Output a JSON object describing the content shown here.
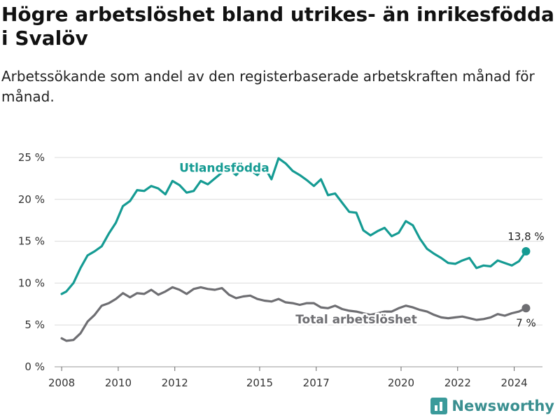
{
  "header": {
    "title": "Högre arbetslöshet bland utrikes- än inrikesfödda i Svalöv",
    "subtitle": "Arbetssökande som andel av den registerbaserade arbetskraften månad för månad."
  },
  "brand": {
    "name": "Newsworthy",
    "icon": "bar-chart-icon"
  },
  "chart_data": {
    "type": "line",
    "x_ticks": [
      "2008",
      "2010",
      "2012",
      "2015",
      "2017",
      "2020",
      "2022",
      "2024"
    ],
    "y_ticks": [
      "0 %",
      "5 %",
      "10 %",
      "15 %",
      "20 %",
      "25 %"
    ],
    "ylim": [
      0,
      25
    ],
    "grid": true,
    "series": [
      {
        "name": "Utlandsfödda",
        "color": "#159b93",
        "end_label": "13,8 %",
        "points": [
          [
            "2008-01",
            8.7
          ],
          [
            "2008-03",
            9.0
          ],
          [
            "2008-06",
            10.0
          ],
          [
            "2008-09",
            11.8
          ],
          [
            "2008-12",
            13.3
          ],
          [
            "2009-03",
            13.8
          ],
          [
            "2009-06",
            14.4
          ],
          [
            "2009-09",
            15.9
          ],
          [
            "2009-12",
            17.2
          ],
          [
            "2010-03",
            19.2
          ],
          [
            "2010-06",
            19.8
          ],
          [
            "2010-09",
            21.1
          ],
          [
            "2010-12",
            21.0
          ],
          [
            "2011-03",
            21.6
          ],
          [
            "2011-06",
            21.3
          ],
          [
            "2011-09",
            20.6
          ],
          [
            "2011-12",
            22.2
          ],
          [
            "2012-03",
            21.7
          ],
          [
            "2012-06",
            20.8
          ],
          [
            "2012-09",
            21.0
          ],
          [
            "2012-12",
            22.2
          ],
          [
            "2013-03",
            21.8
          ],
          [
            "2013-06",
            22.5
          ],
          [
            "2013-09",
            23.2
          ],
          [
            "2013-12",
            23.6
          ],
          [
            "2014-03",
            22.9
          ],
          [
            "2014-06",
            23.8
          ],
          [
            "2014-09",
            23.5
          ],
          [
            "2014-12",
            22.9
          ],
          [
            "2015-03",
            23.9
          ],
          [
            "2015-06",
            22.4
          ],
          [
            "2015-09",
            24.9
          ],
          [
            "2015-12",
            24.3
          ],
          [
            "2016-03",
            23.4
          ],
          [
            "2016-06",
            22.9
          ],
          [
            "2016-09",
            22.3
          ],
          [
            "2016-12",
            21.6
          ],
          [
            "2017-03",
            22.4
          ],
          [
            "2017-06",
            20.5
          ],
          [
            "2017-09",
            20.7
          ],
          [
            "2017-12",
            19.6
          ],
          [
            "2018-03",
            18.5
          ],
          [
            "2018-06",
            18.4
          ],
          [
            "2018-09",
            16.3
          ],
          [
            "2018-12",
            15.7
          ],
          [
            "2019-03",
            16.2
          ],
          [
            "2019-06",
            16.6
          ],
          [
            "2019-09",
            15.6
          ],
          [
            "2019-12",
            16.0
          ],
          [
            "2020-03",
            17.4
          ],
          [
            "2020-06",
            16.9
          ],
          [
            "2020-09",
            15.3
          ],
          [
            "2020-12",
            14.1
          ],
          [
            "2021-03",
            13.5
          ],
          [
            "2021-06",
            13.0
          ],
          [
            "2021-09",
            12.4
          ],
          [
            "2021-12",
            12.3
          ],
          [
            "2022-03",
            12.7
          ],
          [
            "2022-06",
            13.0
          ],
          [
            "2022-09",
            11.8
          ],
          [
            "2022-12",
            12.1
          ],
          [
            "2023-03",
            12.0
          ],
          [
            "2023-06",
            12.7
          ],
          [
            "2023-09",
            12.4
          ],
          [
            "2023-12",
            12.1
          ],
          [
            "2024-03",
            12.6
          ],
          [
            "2024-06",
            13.8
          ]
        ]
      },
      {
        "name": "Total arbetslöshet",
        "color": "#6e6e72",
        "end_label": "7 %",
        "points": [
          [
            "2008-01",
            3.4
          ],
          [
            "2008-03",
            3.1
          ],
          [
            "2008-06",
            3.2
          ],
          [
            "2008-09",
            4.0
          ],
          [
            "2008-12",
            5.4
          ],
          [
            "2009-03",
            6.2
          ],
          [
            "2009-06",
            7.3
          ],
          [
            "2009-09",
            7.6
          ],
          [
            "2009-12",
            8.1
          ],
          [
            "2010-03",
            8.8
          ],
          [
            "2010-06",
            8.3
          ],
          [
            "2010-09",
            8.8
          ],
          [
            "2010-12",
            8.7
          ],
          [
            "2011-03",
            9.2
          ],
          [
            "2011-06",
            8.6
          ],
          [
            "2011-09",
            9.0
          ],
          [
            "2011-12",
            9.5
          ],
          [
            "2012-03",
            9.2
          ],
          [
            "2012-06",
            8.7
          ],
          [
            "2012-09",
            9.3
          ],
          [
            "2012-12",
            9.5
          ],
          [
            "2013-03",
            9.3
          ],
          [
            "2013-06",
            9.2
          ],
          [
            "2013-09",
            9.4
          ],
          [
            "2013-12",
            8.6
          ],
          [
            "2014-03",
            8.2
          ],
          [
            "2014-06",
            8.4
          ],
          [
            "2014-09",
            8.5
          ],
          [
            "2014-12",
            8.1
          ],
          [
            "2015-03",
            7.9
          ],
          [
            "2015-06",
            7.8
          ],
          [
            "2015-09",
            8.1
          ],
          [
            "2015-12",
            7.7
          ],
          [
            "2016-03",
            7.6
          ],
          [
            "2016-06",
            7.4
          ],
          [
            "2016-09",
            7.6
          ],
          [
            "2016-12",
            7.6
          ],
          [
            "2017-03",
            7.1
          ],
          [
            "2017-06",
            7.0
          ],
          [
            "2017-09",
            7.3
          ],
          [
            "2017-12",
            6.9
          ],
          [
            "2018-03",
            6.7
          ],
          [
            "2018-06",
            6.6
          ],
          [
            "2018-09",
            6.4
          ],
          [
            "2018-12",
            6.2
          ],
          [
            "2019-03",
            6.4
          ],
          [
            "2019-06",
            6.6
          ],
          [
            "2019-09",
            6.6
          ],
          [
            "2019-12",
            7.0
          ],
          [
            "2020-03",
            7.3
          ],
          [
            "2020-06",
            7.1
          ],
          [
            "2020-09",
            6.8
          ],
          [
            "2020-12",
            6.6
          ],
          [
            "2021-03",
            6.2
          ],
          [
            "2021-06",
            5.9
          ],
          [
            "2021-09",
            5.8
          ],
          [
            "2021-12",
            5.9
          ],
          [
            "2022-03",
            6.0
          ],
          [
            "2022-06",
            5.8
          ],
          [
            "2022-09",
            5.6
          ],
          [
            "2022-12",
            5.7
          ],
          [
            "2023-03",
            5.9
          ],
          [
            "2023-06",
            6.3
          ],
          [
            "2023-09",
            6.1
          ],
          [
            "2023-12",
            6.4
          ],
          [
            "2024-03",
            6.6
          ],
          [
            "2024-06",
            7.0
          ]
        ]
      }
    ]
  }
}
